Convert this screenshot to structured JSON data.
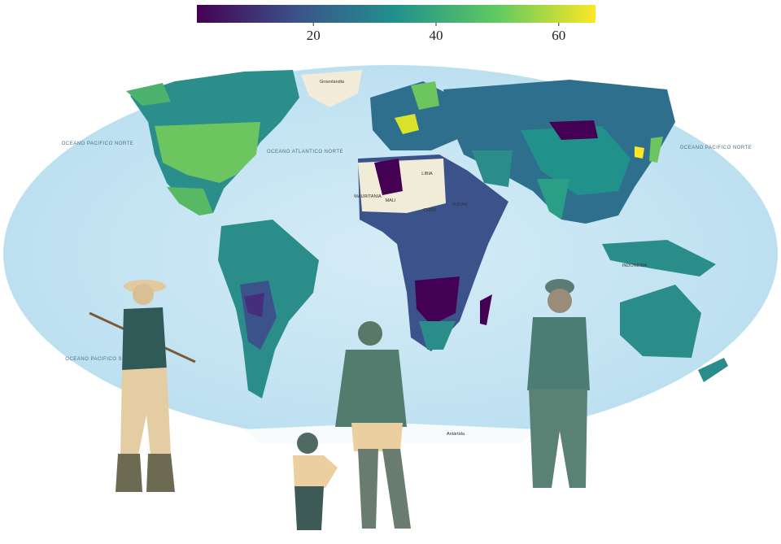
{
  "colorbar": {
    "range": [
      1,
      66
    ],
    "ticks": [
      20,
      40,
      60
    ]
  },
  "map": {
    "labels": [
      "Groenlandia",
      "OCEANO PACIFICO NORTE",
      "OCEANO ATLANTICO NORTE",
      "OCEANO PACIFICO NORTE",
      "OCEANO PACIFICO SUR",
      "LIBIA",
      "MALI",
      "CHAD",
      "SUDAN",
      "MAURITANIA",
      "INDONESIA",
      "Antártida"
    ]
  }
}
